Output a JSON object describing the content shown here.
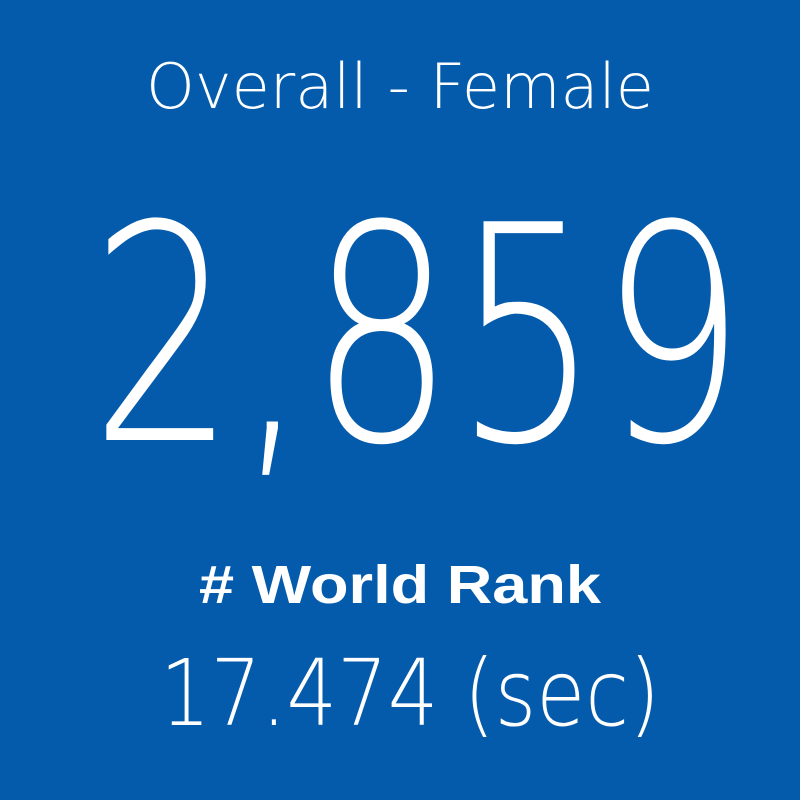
{
  "tile": {
    "title": "Overall - Female",
    "value": "2,859",
    "label": "# World Rank",
    "time": "17.474 (sec)"
  }
}
